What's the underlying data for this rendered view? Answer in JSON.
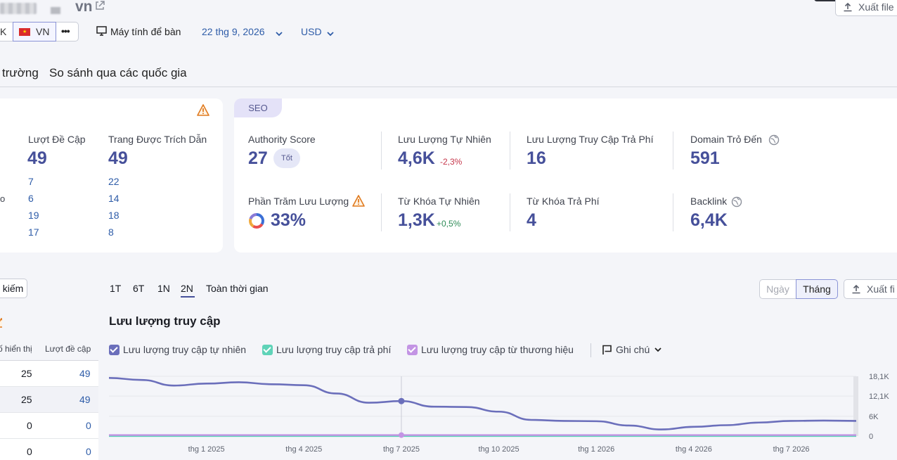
{
  "header": {
    "domain_suffix": "vn",
    "export_top": "Xuất file",
    "country_prev": "K",
    "country": "VN",
    "more": "•••",
    "device": "Máy tính để bàn",
    "date": "22 thg 9, 2026",
    "currency": "USD"
  },
  "tabs": [
    "trường",
    "So sánh qua các quốc gia"
  ],
  "mentions_card": {
    "col1": {
      "label": "Lượt Đề Cập",
      "value": "49",
      "rows": [
        "7",
        "6",
        "19",
        "17"
      ]
    },
    "col2": {
      "label": "Trang Được Trích Dẫn",
      "value": "49",
      "rows": [
        "22",
        "14",
        "18",
        "8"
      ]
    },
    "row_stub": "o"
  },
  "seo_card": {
    "tag": "SEO",
    "authority_label": "Authority Score",
    "authority_value": "27",
    "authority_badge": "Tốt",
    "organic_label": "Lưu Lượng Tự Nhiên",
    "organic_value": "4,6K",
    "organic_change": "-2,3%",
    "paid_label": "Lưu Lượng Truy Cập Trả Phí",
    "paid_value": "16",
    "refdomain_label": "Domain Trỏ Đến",
    "refdomain_value": "591",
    "share_label": "Phần Trăm Lưu Lượng",
    "share_value": "33%",
    "organic_kw_label": "Từ Khóa Tự Nhiên",
    "organic_kw_value": "1,3K",
    "organic_kw_change": "+0,5%",
    "paid_kw_label": "Từ Khóa Trả Phí",
    "paid_kw_value": "4",
    "backlink_label": "Backlink",
    "backlink_value": "6,4K"
  },
  "left_table": {
    "button": "kiếm",
    "col_impressions": "ố hiển thị",
    "col_mentions": "Lượt đề cập",
    "rows": [
      {
        "impressions": "25",
        "mentions": "49"
      },
      {
        "impressions": "25",
        "mentions": "49"
      },
      {
        "impressions": "0",
        "mentions": "0"
      },
      {
        "impressions": "0",
        "mentions": "0"
      }
    ]
  },
  "periods": [
    "1T",
    "6T",
    "1N",
    "2N",
    "Toàn thời gian"
  ],
  "active_period": "2N",
  "granularity": {
    "day": "Ngày",
    "month": "Tháng"
  },
  "export_chart": "Xuất fi",
  "chart_title": "Lưu lượng truy cập",
  "legend": {
    "organic": "Lưu lượng truy cập tự nhiên",
    "paid": "Lưu lượng truy cập trả phí",
    "branded": "Lưu lượng truy cập từ thương hiệu",
    "notes": "Ghi chú"
  },
  "colors": {
    "organic": "#6b6fbb",
    "paid": "#5fd3b8",
    "branded": "#c394e4",
    "accent": "#46509a"
  },
  "chart_data": {
    "type": "line",
    "x": [
      "2024-10",
      "2024-11",
      "2024-12",
      "2025-01",
      "2025-02",
      "2025-03",
      "2025-04",
      "2025-05",
      "2025-06",
      "2025-07",
      "2025-08",
      "2025-09",
      "2025-10",
      "2025-11",
      "2025-12",
      "2026-01",
      "2026-02",
      "2026-03",
      "2026-04",
      "2026-05",
      "2026-06",
      "2026-07",
      "2026-08",
      "2026-09"
    ],
    "x_tick_labels": [
      "thg 1 2025",
      "thg 4 2025",
      "thg 7 2025",
      "thg 10 2025",
      "thg 1 2026",
      "thg 4 2026",
      "thg 7 2026"
    ],
    "x_tick_positions": [
      "2025-01",
      "2025-04",
      "2025-07",
      "2025-10",
      "2026-01",
      "2026-04",
      "2026-07"
    ],
    "y_tick_labels": [
      "18,1K",
      "12,1K",
      "6K",
      "0"
    ],
    "y_tick_values": [
      18100,
      12100,
      6000,
      0
    ],
    "ylim": [
      0,
      18100
    ],
    "series": [
      {
        "name": "Lưu lượng truy cập tự nhiên",
        "values": [
          17600,
          17000,
          15300,
          15900,
          16300,
          15700,
          15400,
          12900,
          10100,
          10600,
          8900,
          8800,
          7400,
          4900,
          4600,
          4500,
          3200,
          2000,
          2800,
          3300,
          4100,
          4600,
          4700,
          4600
        ]
      },
      {
        "name": "Lưu lượng truy cập trả phí",
        "values": [
          16,
          16,
          16,
          16,
          16,
          16,
          16,
          16,
          16,
          16,
          16,
          16,
          16,
          16,
          16,
          16,
          16,
          16,
          16,
          16,
          16,
          16,
          16,
          16
        ]
      },
      {
        "name": "Lưu lượng truy cập từ thương hiệu",
        "values": [
          300,
          300,
          300,
          300,
          300,
          300,
          300,
          300,
          300,
          300,
          300,
          300,
          300,
          300,
          300,
          300,
          300,
          300,
          300,
          300,
          300,
          300,
          300,
          300
        ]
      }
    ],
    "hover_index": 9
  }
}
